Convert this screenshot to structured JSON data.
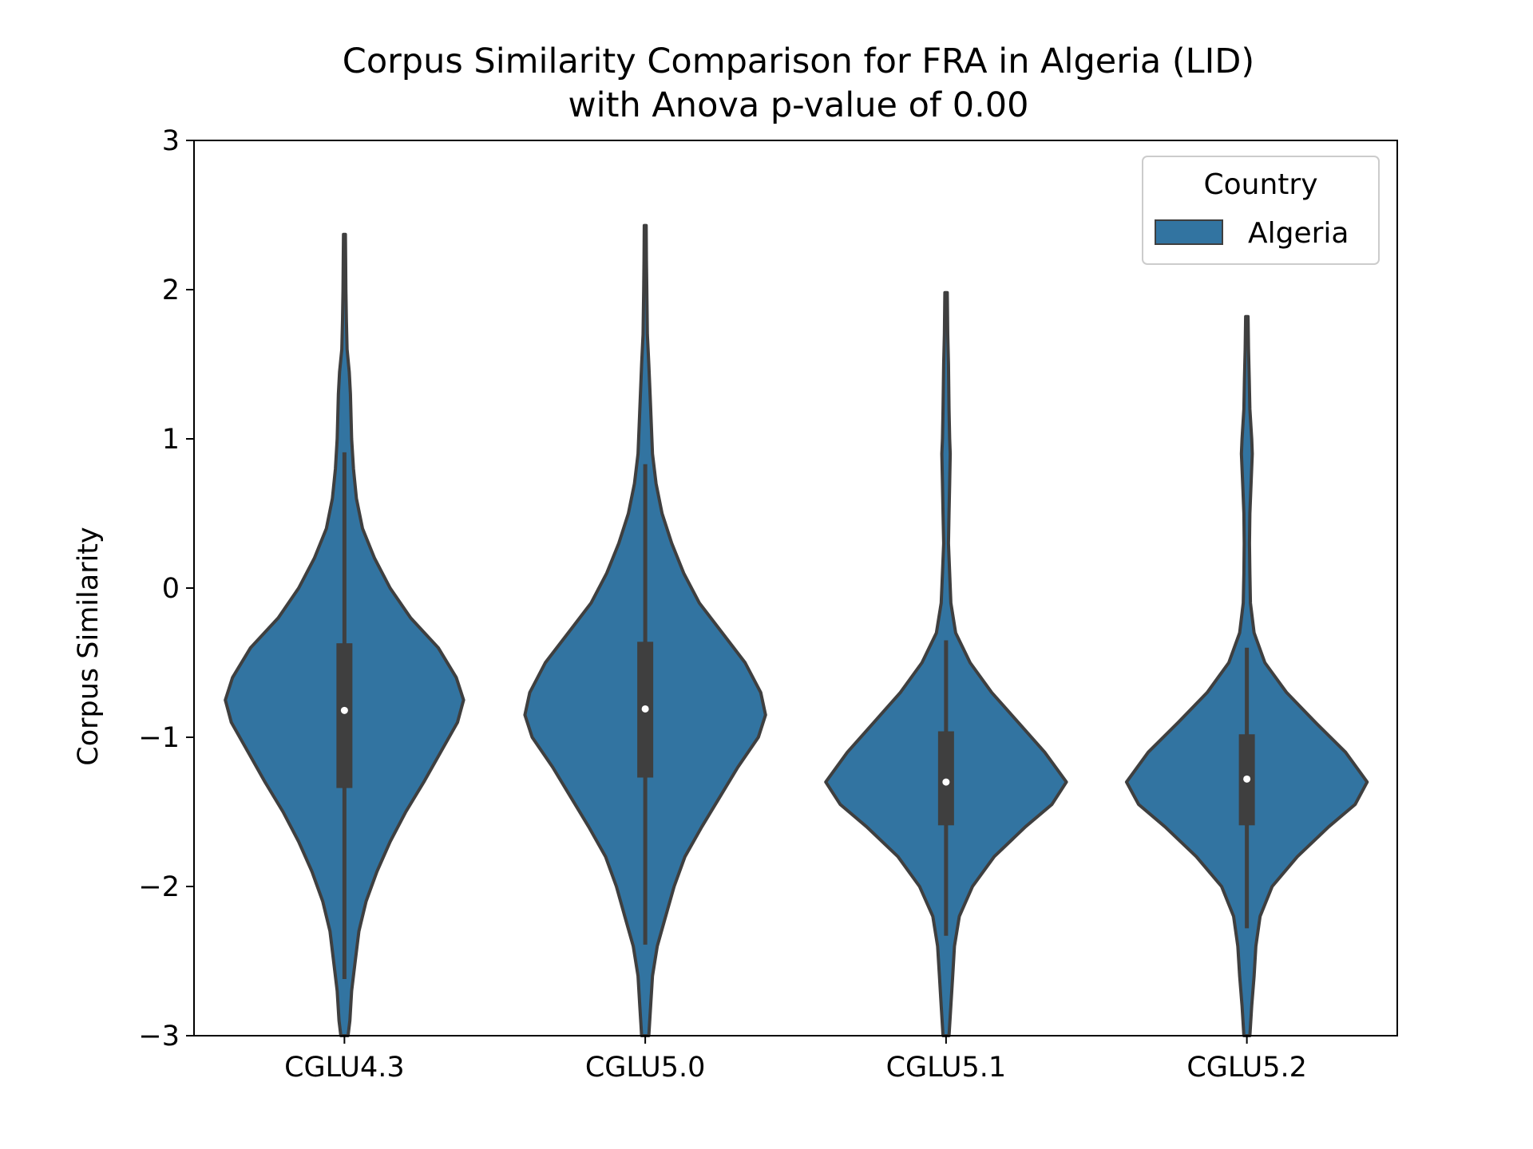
{
  "chart_data": {
    "type": "violin",
    "title_line1": "Corpus Similarity Comparison for FRA in Algeria (LID)",
    "title_line2": "with Anova p-value of 0.00",
    "xlabel": "",
    "ylabel": "Corpus Similarity",
    "ylim": [
      -3,
      3
    ],
    "yticks": [
      -3,
      -2,
      -1,
      0,
      1,
      2,
      3
    ],
    "ytick_labels": [
      "−3",
      "−2",
      "−1",
      "0",
      "1",
      "2",
      "3"
    ],
    "categories": [
      "CGLU4.3",
      "CGLU5.0",
      "CGLU5.1",
      "CGLU5.2"
    ],
    "legend": {
      "title": "Country",
      "position": "top-right",
      "entries": [
        {
          "label": "Algeria",
          "color": "#3274a1"
        }
      ]
    },
    "colors": {
      "violin_fill": "#3274a1",
      "violin_edge": "#3f3f3f",
      "box": "#3f3f3f",
      "median": "#ffffff"
    },
    "violins": [
      {
        "category": "CGLU4.3",
        "median": -0.82,
        "q1": -1.34,
        "q3": -0.37,
        "whisker_low": -2.62,
        "whisker_high": 0.91,
        "profile": [
          [
            2.37,
            0.008
          ],
          [
            2.2,
            0.01
          ],
          [
            2.0,
            0.012
          ],
          [
            1.8,
            0.016
          ],
          [
            1.6,
            0.022
          ],
          [
            1.45,
            0.04
          ],
          [
            1.3,
            0.05
          ],
          [
            1.0,
            0.06
          ],
          [
            0.8,
            0.075
          ],
          [
            0.6,
            0.1
          ],
          [
            0.4,
            0.15
          ],
          [
            0.2,
            0.25
          ],
          [
            0.0,
            0.38
          ],
          [
            -0.2,
            0.55
          ],
          [
            -0.4,
            0.78
          ],
          [
            -0.6,
            0.93
          ],
          [
            -0.75,
            0.99
          ],
          [
            -0.9,
            0.94
          ],
          [
            -1.1,
            0.8
          ],
          [
            -1.3,
            0.66
          ],
          [
            -1.5,
            0.51
          ],
          [
            -1.7,
            0.38
          ],
          [
            -1.9,
            0.27
          ],
          [
            -2.1,
            0.18
          ],
          [
            -2.3,
            0.12
          ],
          [
            -2.5,
            0.09
          ],
          [
            -2.7,
            0.06
          ],
          [
            -2.9,
            0.045
          ],
          [
            -3.0,
            0.03
          ]
        ]
      },
      {
        "category": "CGLU5.0",
        "median": -0.81,
        "q1": -1.27,
        "q3": -0.36,
        "whisker_low": -2.39,
        "whisker_high": 0.83,
        "profile": [
          [
            2.43,
            0.008
          ],
          [
            2.2,
            0.01
          ],
          [
            2.0,
            0.013
          ],
          [
            1.7,
            0.018
          ],
          [
            1.5,
            0.03
          ],
          [
            1.3,
            0.04
          ],
          [
            1.1,
            0.05
          ],
          [
            0.9,
            0.06
          ],
          [
            0.7,
            0.09
          ],
          [
            0.5,
            0.14
          ],
          [
            0.3,
            0.22
          ],
          [
            0.1,
            0.32
          ],
          [
            -0.1,
            0.45
          ],
          [
            -0.3,
            0.64
          ],
          [
            -0.5,
            0.83
          ],
          [
            -0.7,
            0.96
          ],
          [
            -0.85,
            1.0
          ],
          [
            -1.0,
            0.94
          ],
          [
            -1.2,
            0.77
          ],
          [
            -1.4,
            0.62
          ],
          [
            -1.6,
            0.47
          ],
          [
            -1.8,
            0.33
          ],
          [
            -2.0,
            0.24
          ],
          [
            -2.2,
            0.17
          ],
          [
            -2.4,
            0.1
          ],
          [
            -2.6,
            0.06
          ],
          [
            -2.8,
            0.045
          ],
          [
            -3.0,
            0.03
          ]
        ]
      },
      {
        "category": "CGLU5.1",
        "median": -1.3,
        "q1": -1.59,
        "q3": -0.96,
        "whisker_low": -2.33,
        "whisker_high": -0.35,
        "profile": [
          [
            1.98,
            0.01
          ],
          [
            1.7,
            0.014
          ],
          [
            1.5,
            0.02
          ],
          [
            1.2,
            0.025
          ],
          [
            1.0,
            0.03
          ],
          [
            0.9,
            0.035
          ],
          [
            0.7,
            0.03
          ],
          [
            0.5,
            0.025
          ],
          [
            0.3,
            0.02
          ],
          [
            0.1,
            0.03
          ],
          [
            -0.1,
            0.04
          ],
          [
            -0.3,
            0.08
          ],
          [
            -0.5,
            0.2
          ],
          [
            -0.7,
            0.38
          ],
          [
            -0.9,
            0.6
          ],
          [
            -1.1,
            0.82
          ],
          [
            -1.3,
            1.0
          ],
          [
            -1.45,
            0.88
          ],
          [
            -1.6,
            0.66
          ],
          [
            -1.8,
            0.4
          ],
          [
            -2.0,
            0.22
          ],
          [
            -2.2,
            0.11
          ],
          [
            -2.4,
            0.07
          ],
          [
            -2.6,
            0.055
          ],
          [
            -2.8,
            0.04
          ],
          [
            -3.0,
            0.025
          ]
        ]
      },
      {
        "category": "CGLU5.2",
        "median": -1.28,
        "q1": -1.59,
        "q3": -0.98,
        "whisker_low": -2.28,
        "whisker_high": -0.4,
        "profile": [
          [
            1.82,
            0.01
          ],
          [
            1.6,
            0.014
          ],
          [
            1.4,
            0.02
          ],
          [
            1.2,
            0.025
          ],
          [
            1.0,
            0.04
          ],
          [
            0.9,
            0.045
          ],
          [
            0.7,
            0.035
          ],
          [
            0.5,
            0.025
          ],
          [
            0.3,
            0.022
          ],
          [
            0.1,
            0.025
          ],
          [
            -0.1,
            0.03
          ],
          [
            -0.3,
            0.06
          ],
          [
            -0.5,
            0.15
          ],
          [
            -0.7,
            0.33
          ],
          [
            -0.9,
            0.57
          ],
          [
            -1.1,
            0.82
          ],
          [
            -1.3,
            1.0
          ],
          [
            -1.45,
            0.9
          ],
          [
            -1.6,
            0.68
          ],
          [
            -1.8,
            0.42
          ],
          [
            -2.0,
            0.21
          ],
          [
            -2.2,
            0.11
          ],
          [
            -2.4,
            0.075
          ],
          [
            -2.6,
            0.06
          ],
          [
            -2.8,
            0.04
          ],
          [
            -3.0,
            0.025
          ]
        ]
      }
    ]
  }
}
